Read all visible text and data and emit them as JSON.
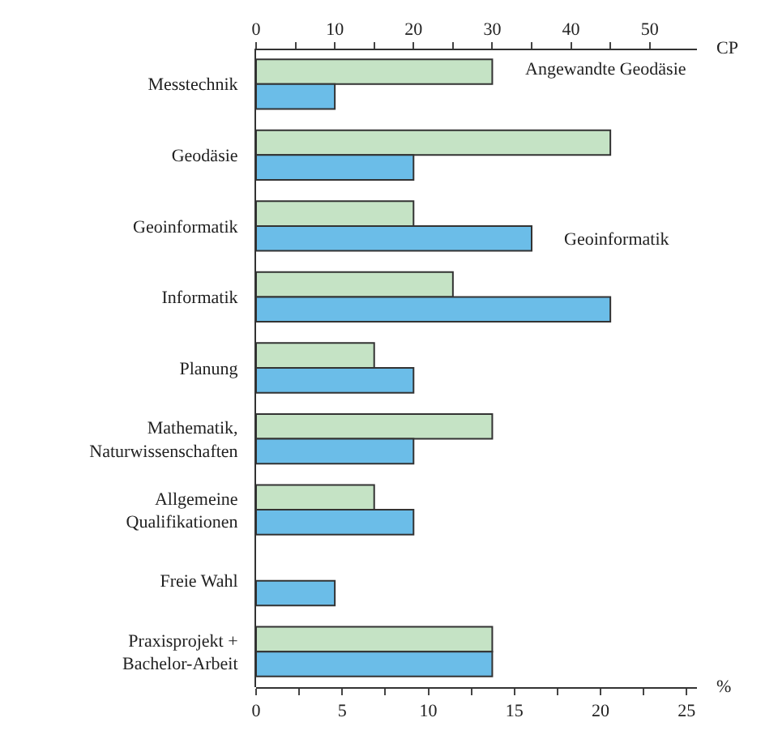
{
  "chart_data": {
    "type": "bar",
    "orientation": "horizontal",
    "categories": [
      "Messtechnik",
      "Geodäsie",
      "Geoinformatik",
      "Informatik",
      "Planung",
      "Mathematik,\nNaturwissenschaften",
      "Allgemeine\nQualifikationen",
      "Freie Wahl",
      "Praxisprojekt +\nBachelor-Arbeit"
    ],
    "series": [
      {
        "name": "Angewandte Geodäsie",
        "color": "#c5e3c5",
        "values": [
          30,
          45,
          20,
          25,
          15,
          30,
          15,
          null,
          30
        ]
      },
      {
        "name": "Geoinformatik",
        "color": "#6bbde8",
        "values": [
          10,
          20,
          35,
          45,
          20,
          20,
          20,
          10,
          30
        ]
      }
    ],
    "xlabel": "CP",
    "x2label": "%",
    "xlim": [
      0,
      56
    ],
    "xticks": [
      0,
      {
        "value": 5,
        "label": null
      },
      10,
      {
        "value": 15,
        "label": null
      },
      20,
      {
        "value": 25,
        "label": null
      },
      30,
      {
        "value": 35,
        "label": null
      },
      40,
      {
        "value": 45,
        "label": null
      },
      50
    ],
    "x2lim": [
      0,
      25.6
    ],
    "x2ticks": [
      0,
      {
        "value": 2.5,
        "label": null
      },
      5,
      {
        "value": 7.5,
        "label": null
      },
      10,
      {
        "value": 12.5,
        "label": null
      },
      15,
      {
        "value": 17.5,
        "label": null
      },
      20,
      {
        "value": 22.5,
        "label": null
      },
      25
    ],
    "legend": false
  }
}
